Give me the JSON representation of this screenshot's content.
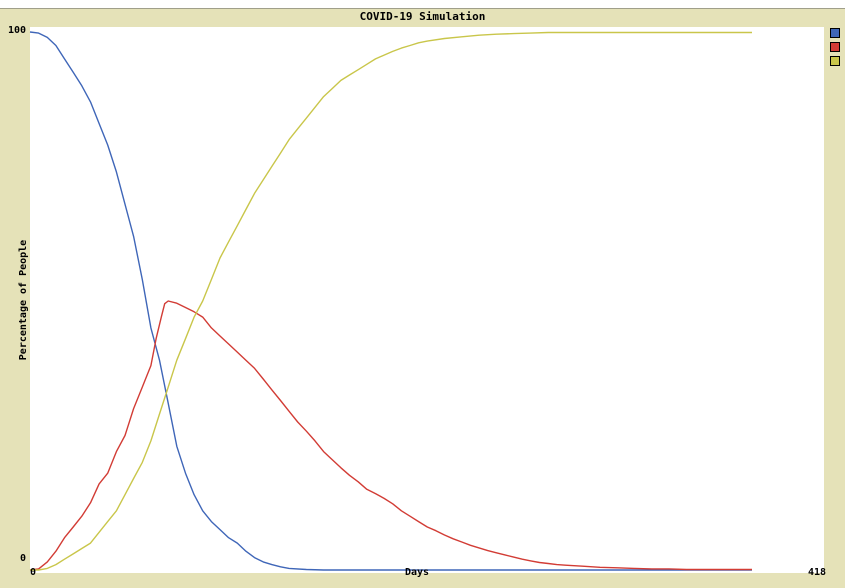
{
  "chart_data": {
    "type": "line",
    "title": "COVID-19 Simulation",
    "xlabel": "Days",
    "ylabel": "Percentage of People",
    "xlim": [
      0,
      418
    ],
    "ylim": [
      0,
      100
    ],
    "x_tick_labels": [
      "0",
      "418"
    ],
    "y_tick_labels": [
      "0",
      "100"
    ],
    "grid": false,
    "legend_position": "top-right",
    "series": [
      {
        "color": "#3f66b8",
        "points": [
          [
            0,
            100
          ],
          [
            5,
            99.8
          ],
          [
            10,
            99
          ],
          [
            15,
            97.5
          ],
          [
            20,
            95
          ],
          [
            25,
            92.5
          ],
          [
            30,
            90
          ],
          [
            35,
            87
          ],
          [
            40,
            83
          ],
          [
            45,
            79
          ],
          [
            50,
            74
          ],
          [
            55,
            68
          ],
          [
            60,
            62
          ],
          [
            65,
            54
          ],
          [
            70,
            45
          ],
          [
            75,
            39
          ],
          [
            80,
            31
          ],
          [
            85,
            23
          ],
          [
            90,
            18
          ],
          [
            95,
            14
          ],
          [
            100,
            11
          ],
          [
            105,
            9
          ],
          [
            110,
            7.5
          ],
          [
            115,
            6
          ],
          [
            120,
            5
          ],
          [
            125,
            3.5
          ],
          [
            130,
            2.3
          ],
          [
            135,
            1.5
          ],
          [
            140,
            1
          ],
          [
            145,
            0.6
          ],
          [
            150,
            0.3
          ],
          [
            160,
            0.1
          ],
          [
            170,
            0
          ],
          [
            418,
            0
          ]
        ]
      },
      {
        "color": "#d23c35",
        "points": [
          [
            0,
            0
          ],
          [
            5,
            0.2
          ],
          [
            10,
            1.5
          ],
          [
            15,
            3.5
          ],
          [
            20,
            6
          ],
          [
            25,
            8
          ],
          [
            30,
            10
          ],
          [
            35,
            12.5
          ],
          [
            40,
            16
          ],
          [
            45,
            18
          ],
          [
            50,
            22
          ],
          [
            55,
            25
          ],
          [
            60,
            30
          ],
          [
            65,
            34
          ],
          [
            70,
            38
          ],
          [
            73,
            43
          ],
          [
            76,
            47
          ],
          [
            78,
            49.5
          ],
          [
            80,
            50
          ],
          [
            85,
            49.6
          ],
          [
            90,
            48.8
          ],
          [
            95,
            48
          ],
          [
            100,
            47
          ],
          [
            105,
            45
          ],
          [
            110,
            43.5
          ],
          [
            115,
            42
          ],
          [
            120,
            40.5
          ],
          [
            125,
            39
          ],
          [
            130,
            37.5
          ],
          [
            135,
            35.5
          ],
          [
            140,
            33.5
          ],
          [
            145,
            31.5
          ],
          [
            150,
            29.5
          ],
          [
            155,
            27.5
          ],
          [
            160,
            25.8
          ],
          [
            165,
            24
          ],
          [
            170,
            22
          ],
          [
            175,
            20.5
          ],
          [
            180,
            19
          ],
          [
            185,
            17.6
          ],
          [
            190,
            16.4
          ],
          [
            195,
            15
          ],
          [
            200,
            14.2
          ],
          [
            205,
            13.3
          ],
          [
            210,
            12.3
          ],
          [
            215,
            11
          ],
          [
            220,
            10
          ],
          [
            225,
            9
          ],
          [
            230,
            8
          ],
          [
            235,
            7.3
          ],
          [
            240,
            6.5
          ],
          [
            245,
            5.8
          ],
          [
            250,
            5.2
          ],
          [
            255,
            4.6
          ],
          [
            260,
            4.1
          ],
          [
            265,
            3.6
          ],
          [
            270,
            3.2
          ],
          [
            275,
            2.8
          ],
          [
            280,
            2.4
          ],
          [
            285,
            2
          ],
          [
            290,
            1.7
          ],
          [
            295,
            1.4
          ],
          [
            300,
            1.2
          ],
          [
            305,
            1
          ],
          [
            310,
            0.9
          ],
          [
            315,
            0.8
          ],
          [
            320,
            0.7
          ],
          [
            330,
            0.5
          ],
          [
            340,
            0.4
          ],
          [
            350,
            0.3
          ],
          [
            360,
            0.2
          ],
          [
            370,
            0.2
          ],
          [
            380,
            0.1
          ],
          [
            418,
            0.1
          ]
        ]
      },
      {
        "color": "#c9c64a",
        "points": [
          [
            0,
            0
          ],
          [
            5,
            0
          ],
          [
            10,
            0.3
          ],
          [
            15,
            1
          ],
          [
            20,
            2
          ],
          [
            25,
            3
          ],
          [
            30,
            4
          ],
          [
            35,
            5
          ],
          [
            40,
            7
          ],
          [
            45,
            9
          ],
          [
            50,
            11
          ],
          [
            55,
            14
          ],
          [
            60,
            17
          ],
          [
            65,
            20
          ],
          [
            70,
            24
          ],
          [
            75,
            29
          ],
          [
            80,
            34
          ],
          [
            85,
            39
          ],
          [
            90,
            43
          ],
          [
            95,
            47
          ],
          [
            100,
            50
          ],
          [
            105,
            54
          ],
          [
            110,
            58
          ],
          [
            115,
            61
          ],
          [
            120,
            64
          ],
          [
            125,
            67
          ],
          [
            130,
            70
          ],
          [
            135,
            72.5
          ],
          [
            140,
            75
          ],
          [
            145,
            77.5
          ],
          [
            150,
            80
          ],
          [
            155,
            82
          ],
          [
            160,
            84
          ],
          [
            165,
            86
          ],
          [
            170,
            88
          ],
          [
            175,
            89.5
          ],
          [
            180,
            91
          ],
          [
            185,
            92
          ],
          [
            190,
            93
          ],
          [
            195,
            94
          ],
          [
            200,
            95
          ],
          [
            205,
            95.7
          ],
          [
            210,
            96.4
          ],
          [
            215,
            97
          ],
          [
            220,
            97.5
          ],
          [
            225,
            98
          ],
          [
            230,
            98.3
          ],
          [
            240,
            98.8
          ],
          [
            250,
            99.1
          ],
          [
            260,
            99.4
          ],
          [
            270,
            99.6
          ],
          [
            280,
            99.7
          ],
          [
            290,
            99.8
          ],
          [
            300,
            99.9
          ],
          [
            418,
            99.9
          ]
        ]
      }
    ]
  }
}
